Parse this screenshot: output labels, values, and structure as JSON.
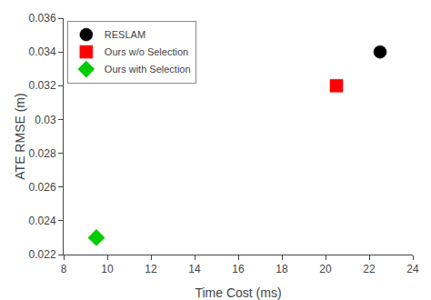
{
  "chart_data": {
    "type": "scatter",
    "xlabel": "Time Cost (ms)",
    "ylabel": "ATE RMSE (m)",
    "series": [
      {
        "name": "RESLAM",
        "x": [
          22.5
        ],
        "values": [
          0.034
        ],
        "color": "#000000",
        "marker": "circle"
      },
      {
        "name": "Ours w/o Selection",
        "x": [
          20.5
        ],
        "values": [
          0.032
        ],
        "color": "#ff0000",
        "marker": "square"
      },
      {
        "name": "Ours with Selection",
        "x": [
          9.5
        ],
        "values": [
          0.023
        ],
        "color": "#00cc00",
        "marker": "diamond"
      }
    ],
    "xlim": [
      8,
      24
    ],
    "ylim": [
      0.022,
      0.036
    ],
    "xticks": [
      8,
      10,
      12,
      14,
      16,
      18,
      20,
      22,
      24
    ],
    "yticks": [
      0.022,
      0.024,
      0.026,
      0.028,
      0.03,
      0.032,
      0.034,
      0.036
    ],
    "grid": false,
    "legend": "upper left"
  }
}
